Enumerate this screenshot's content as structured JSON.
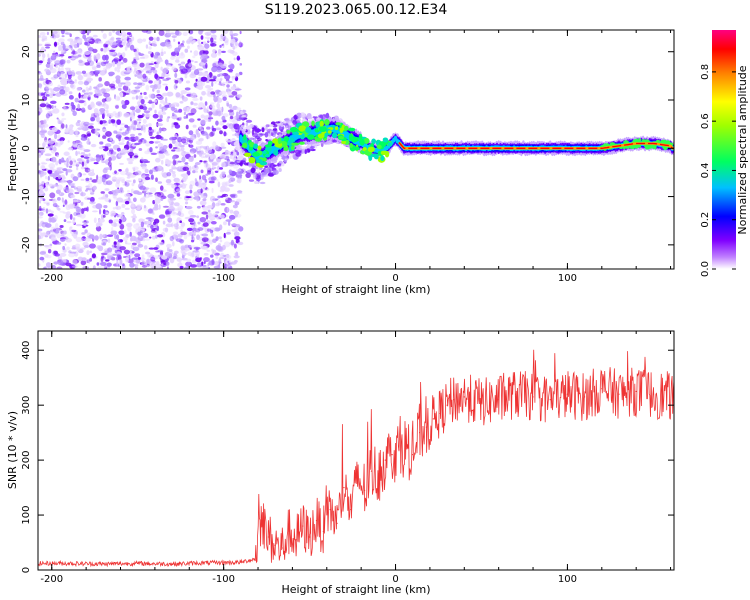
{
  "chart_data": [
    {
      "type": "heatmap",
      "title": "S119.2023.065.00.12.E34",
      "xlabel": "Height of straight line (km)",
      "ylabel": "Frequency (Hz)",
      "xlim": [
        -208,
        162
      ],
      "ylim": [
        -25,
        24.5
      ],
      "xticks": [
        -200,
        -100,
        0,
        100
      ],
      "yticks": [
        -20,
        -10,
        0,
        10,
        20
      ],
      "grid": false,
      "colorbar": {
        "label": "Normalized spectral amplitude",
        "range": [
          0,
          0.97
        ],
        "ticks": [
          "0.0",
          "0.2",
          "0.4",
          "0.6",
          "0.8"
        ]
      },
      "description_points": {
        "noise_region_x": [
          -208,
          -90
        ],
        "transition_x": [
          -90,
          -20
        ],
        "signal_track": {
          "x": [
            -90,
            -85,
            -80,
            -75,
            -70,
            -65,
            -60,
            -55,
            -50,
            -45,
            -40,
            -35,
            -30,
            -25,
            -20,
            -15,
            -10,
            -5,
            0,
            5,
            10,
            20,
            40,
            60,
            80,
            100,
            120,
            130,
            140,
            150,
            160
          ],
          "y": [
            2,
            0,
            -2,
            -1,
            0,
            1,
            2,
            3,
            3,
            3.5,
            4,
            4,
            3,
            2,
            1,
            0,
            -0.5,
            0,
            2,
            0,
            0,
            0,
            0,
            0,
            0,
            0,
            0,
            0.5,
            1,
            1,
            0.5
          ]
        }
      }
    },
    {
      "type": "line",
      "xlabel": "Height of straight line (km)",
      "ylabel": "SNR (10 * v/v)",
      "xlim": [
        -208,
        162
      ],
      "ylim": [
        0,
        435
      ],
      "xticks": [
        -200,
        -100,
        0,
        100
      ],
      "yticks": [
        0,
        100,
        200,
        300,
        400
      ],
      "grid": false,
      "color": "#ee3333",
      "series": [
        {
          "x": [
            -208,
            -190,
            -170,
            -150,
            -130,
            -110,
            -90,
            -82,
            -78,
            -74,
            -70,
            -66,
            -62,
            -58,
            -54,
            -50,
            -46,
            -42,
            -38,
            -34,
            -30,
            -26,
            -22,
            -18,
            -14,
            -10,
            -6,
            -2,
            2,
            6,
            10,
            14,
            18,
            22,
            26,
            30,
            34,
            40,
            50,
            60,
            70,
            80,
            90,
            100,
            110,
            120,
            130,
            140,
            150,
            162
          ],
          "values": [
            12,
            12,
            11,
            12,
            11,
            13,
            14,
            20,
            95,
            60,
            45,
            40,
            70,
            55,
            80,
            60,
            90,
            70,
            110,
            85,
            150,
            110,
            170,
            145,
            180,
            175,
            200,
            210,
            220,
            225,
            210,
            250,
            260,
            275,
            285,
            300,
            310,
            315,
            305,
            310,
            320,
            315,
            310,
            320,
            315,
            330,
            320,
            325,
            320,
            315
          ]
        }
      ]
    }
  ]
}
